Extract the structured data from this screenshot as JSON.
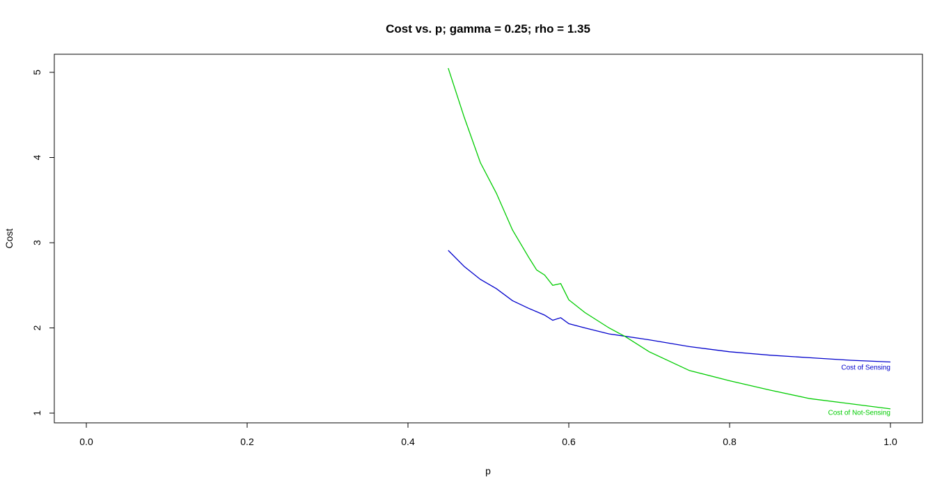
{
  "chart_data": {
    "type": "line",
    "title": "Cost vs. p; gamma = 0.25; rho = 1.35",
    "xlabel": "p",
    "ylabel": "Cost",
    "xlim": [
      0.0,
      1.0
    ],
    "ylim": [
      1,
      5
    ],
    "x_ticks": [
      0.0,
      0.2,
      0.4,
      0.6,
      0.8,
      1.0
    ],
    "x_tick_labels": [
      "0.0",
      "0.2",
      "0.4",
      "0.6",
      "0.8",
      "1.0"
    ],
    "y_ticks": [
      1,
      2,
      3,
      4,
      5
    ],
    "y_tick_labels": [
      "1",
      "2",
      "3",
      "4",
      "5"
    ],
    "grid": false,
    "series": [
      {
        "name": "Cost of Sensing",
        "color": "#0000cc",
        "x": [
          0.45,
          0.47,
          0.49,
          0.51,
          0.53,
          0.55,
          0.57,
          0.58,
          0.59,
          0.6,
          0.62,
          0.65,
          0.7,
          0.75,
          0.8,
          0.85,
          0.9,
          0.95,
          1.0
        ],
        "y": [
          2.91,
          2.72,
          2.57,
          2.46,
          2.32,
          2.23,
          2.15,
          2.09,
          2.12,
          2.05,
          2.0,
          1.93,
          1.86,
          1.78,
          1.72,
          1.68,
          1.65,
          1.62,
          1.6
        ]
      },
      {
        "name": "Cost of Not-Sensing",
        "color": "#00cc00",
        "x": [
          0.45,
          0.47,
          0.49,
          0.51,
          0.53,
          0.55,
          0.56,
          0.57,
          0.58,
          0.59,
          0.6,
          0.62,
          0.65,
          0.67,
          0.7,
          0.75,
          0.8,
          0.85,
          0.9,
          0.95,
          1.0
        ],
        "y": [
          5.05,
          4.47,
          3.94,
          3.58,
          3.15,
          2.83,
          2.68,
          2.62,
          2.5,
          2.52,
          2.33,
          2.18,
          2.0,
          1.9,
          1.72,
          1.5,
          1.38,
          1.27,
          1.17,
          1.11,
          1.05
        ]
      }
    ],
    "annotations": [
      {
        "text": "Cost of Sensing",
        "x": 1.0,
        "y": 1.53,
        "color": "#0000cc"
      },
      {
        "text": "Cost of Not-Sensing",
        "x": 1.0,
        "y": 1.0,
        "color": "#00cc00"
      }
    ]
  }
}
